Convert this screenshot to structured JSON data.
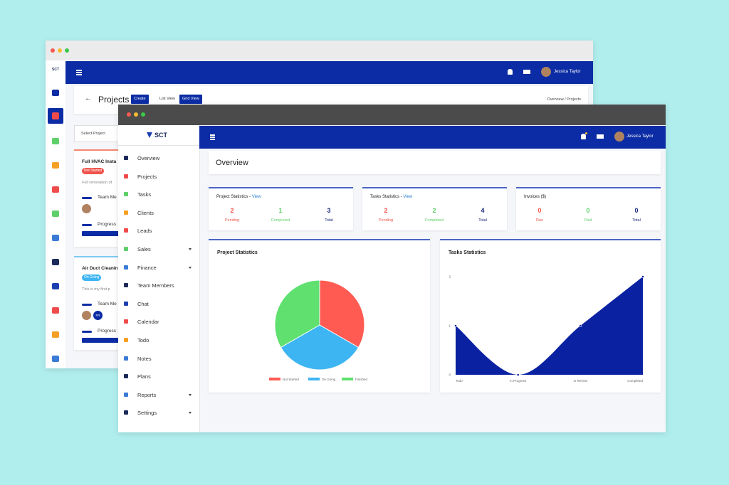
{
  "back_window": {
    "logo": "SCT",
    "user": "Jessica Taylor",
    "page_title": "Projects",
    "buttons": [
      "Create",
      "List View",
      "Grid View"
    ],
    "breadcrumb": "Overview / Projects",
    "select_placeholder": "Select Project",
    "projects": [
      {
        "name": "Full HVAC Insta",
        "status": "Not Started",
        "description": "Full renovation of",
        "team_label": "Team Me",
        "progress_label": "Progress"
      },
      {
        "name": "Air Duct Cleanin",
        "status": "On Going",
        "description": "This is my first p",
        "team_label": "Team Me",
        "progress_label": "Progress",
        "member_initials": "FR"
      }
    ]
  },
  "front_window": {
    "logo": "SCT",
    "user": "Jessica Taylor",
    "page_title": "Overview",
    "menu": [
      {
        "label": "Overview",
        "dropdown": false
      },
      {
        "label": "Projects",
        "dropdown": false
      },
      {
        "label": "Tasks",
        "dropdown": false
      },
      {
        "label": "Clients",
        "dropdown": false
      },
      {
        "label": "Leads",
        "dropdown": false
      },
      {
        "label": "Sales",
        "dropdown": true
      },
      {
        "label": "Finance",
        "dropdown": true
      },
      {
        "label": "Team Members",
        "dropdown": false
      },
      {
        "label": "Chat",
        "dropdown": false
      },
      {
        "label": "Calendar",
        "dropdown": false
      },
      {
        "label": "Todo",
        "dropdown": false
      },
      {
        "label": "Notes",
        "dropdown": false
      },
      {
        "label": "Plans",
        "dropdown": false
      },
      {
        "label": "Reports",
        "dropdown": true
      },
      {
        "label": "Settings",
        "dropdown": true
      }
    ],
    "stat_cards": [
      {
        "title": "Project Statistics -",
        "link": "View",
        "items": [
          {
            "value": 2,
            "label": "Pending"
          },
          {
            "value": 1,
            "label": "Completed"
          },
          {
            "value": 3,
            "label": "Total"
          }
        ]
      },
      {
        "title": "Tasks Statistics -",
        "link": "View",
        "items": [
          {
            "value": 2,
            "label": "Pending"
          },
          {
            "value": 2,
            "label": "Completed"
          },
          {
            "value": 4,
            "label": "Total"
          }
        ]
      },
      {
        "title": "Invoices ($)",
        "items": [
          {
            "value": 0,
            "label": "Due"
          },
          {
            "value": 0,
            "label": "Paid"
          },
          {
            "value": 0,
            "label": "Total"
          }
        ]
      }
    ]
  },
  "chart_data": [
    {
      "type": "pie",
      "title": "Project Statistics",
      "categories": [
        "Not Started",
        "On Going",
        "Finished"
      ],
      "values": [
        1,
        1,
        1
      ],
      "colors": [
        "#ff5b52",
        "#3db5f3",
        "#5fe06f"
      ],
      "legend": "bottom"
    },
    {
      "type": "area",
      "title": "Tasks Statistics",
      "categories": [
        "Todo",
        "In Progress",
        "In Review",
        "Completed"
      ],
      "values": [
        1,
        0,
        1,
        2
      ],
      "color": "#0a22a2",
      "ylim": [
        0,
        2
      ],
      "yticks": [
        0,
        1,
        2
      ],
      "grid": false
    }
  ]
}
